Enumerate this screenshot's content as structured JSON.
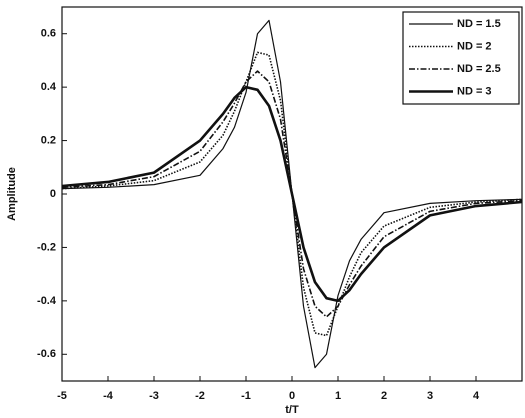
{
  "chart_data": {
    "type": "line",
    "x_label": "t/T",
    "y_label": "Amplitude",
    "x": [
      -5,
      -4,
      -3,
      -2,
      -1.5,
      -1.25,
      -1,
      -0.75,
      -0.5,
      -0.25,
      0,
      0.25,
      0.5,
      0.75,
      1,
      1.25,
      1.5,
      2,
      3,
      4,
      5
    ],
    "series": [
      {
        "name": "ND = 1.5",
        "color": "#111111",
        "dash": "solid",
        "width": 1.2,
        "values": [
          0.02,
          0.025,
          0.035,
          0.07,
          0.17,
          0.25,
          0.38,
          0.6,
          0.65,
          0.42,
          0,
          -0.42,
          -0.65,
          -0.6,
          -0.38,
          -0.25,
          -0.17,
          -0.07,
          -0.035,
          -0.025,
          -0.02
        ]
      },
      {
        "name": "ND = 2",
        "color": "#111111",
        "dash": "dotted",
        "width": 1.6,
        "values": [
          0.02,
          0.03,
          0.05,
          0.12,
          0.22,
          0.31,
          0.42,
          0.53,
          0.52,
          0.35,
          0,
          -0.35,
          -0.52,
          -0.53,
          -0.42,
          -0.31,
          -0.22,
          -0.12,
          -0.05,
          -0.03,
          -0.02
        ]
      },
      {
        "name": "ND = 2.5",
        "color": "#111111",
        "dash": "dashdot",
        "width": 1.6,
        "values": [
          0.025,
          0.035,
          0.065,
          0.16,
          0.27,
          0.34,
          0.42,
          0.46,
          0.42,
          0.28,
          0,
          -0.28,
          -0.42,
          -0.46,
          -0.42,
          -0.34,
          -0.27,
          -0.16,
          -0.065,
          -0.035,
          -0.025
        ]
      },
      {
        "name": "ND = 3",
        "color": "#111111",
        "dash": "solid",
        "width": 2.6,
        "values": [
          0.03,
          0.045,
          0.08,
          0.2,
          0.3,
          0.36,
          0.4,
          0.39,
          0.33,
          0.2,
          0,
          -0.2,
          -0.33,
          -0.39,
          -0.4,
          -0.36,
          -0.3,
          -0.2,
          -0.08,
          -0.045,
          -0.03
        ]
      }
    ],
    "xlim": [
      -5,
      5
    ],
    "ylim": [
      -0.7,
      0.7
    ],
    "xticks": [
      -5,
      -4,
      -3,
      -2,
      -1,
      0,
      1,
      2,
      3,
      4
    ],
    "yticks": [
      -0.6,
      -0.4,
      -0.2,
      0,
      0.2,
      0.4,
      0.6
    ],
    "grid": false,
    "legend": "top-right"
  }
}
